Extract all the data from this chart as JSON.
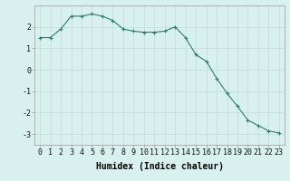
{
  "x": [
    0,
    1,
    2,
    3,
    4,
    5,
    6,
    7,
    8,
    9,
    10,
    11,
    12,
    13,
    14,
    15,
    16,
    17,
    18,
    19,
    20,
    21,
    22,
    23
  ],
  "y": [
    1.5,
    1.5,
    1.9,
    2.5,
    2.5,
    2.6,
    2.5,
    2.3,
    1.9,
    1.8,
    1.75,
    1.75,
    1.8,
    2.0,
    1.5,
    0.7,
    0.4,
    -0.4,
    -1.1,
    -1.7,
    -2.35,
    -2.6,
    -2.85,
    -2.95
  ],
  "line_color": "#2e7d6e",
  "marker": "+",
  "marker_size": 3,
  "bg_color": "#d8f0ee",
  "grid_color": "#c0dcd8",
  "xlabel": "Humidex (Indice chaleur)",
  "xlim": [
    -0.5,
    23.5
  ],
  "ylim": [
    -3.5,
    3.0
  ],
  "yticks": [
    -3,
    -2,
    -1,
    0,
    1,
    2
  ],
  "xticks": [
    0,
    1,
    2,
    3,
    4,
    5,
    6,
    7,
    8,
    9,
    10,
    11,
    12,
    13,
    14,
    15,
    16,
    17,
    18,
    19,
    20,
    21,
    22,
    23
  ],
  "xtick_labels": [
    "0",
    "1",
    "2",
    "3",
    "4",
    "5",
    "6",
    "7",
    "8",
    "9",
    "10",
    "11",
    "12",
    "13",
    "14",
    "15",
    "16",
    "17",
    "18",
    "19",
    "20",
    "21",
    "22",
    "23"
  ],
  "tick_fontsize": 6,
  "xlabel_fontsize": 7,
  "line_width": 0.8
}
